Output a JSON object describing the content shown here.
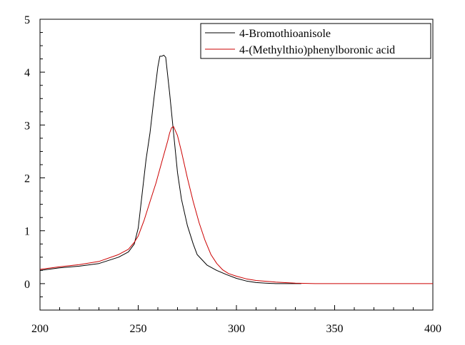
{
  "chart_data": {
    "type": "line",
    "title": "",
    "xlabel": "",
    "ylabel": "",
    "xlim": [
      200,
      400
    ],
    "ylim": [
      -0.5,
      5
    ],
    "x_ticks": [
      200,
      250,
      300,
      350,
      400
    ],
    "y_ticks": [
      0,
      1,
      2,
      3,
      4,
      5
    ],
    "grid": false,
    "legend_position": "top-right",
    "series": [
      {
        "name": "4-Bromothioanisole",
        "color": "#000000",
        "x": [
          200,
          210,
          220,
          230,
          240,
          245,
          248,
          250,
          252,
          254,
          256,
          258,
          260,
          261,
          262,
          263,
          264,
          266,
          268,
          270,
          272,
          275,
          278,
          280,
          285,
          290,
          295,
          300,
          305,
          310,
          315,
          320,
          325,
          330,
          333
        ],
        "y": [
          0.25,
          0.3,
          0.33,
          0.38,
          0.5,
          0.6,
          0.75,
          1.05,
          1.7,
          2.35,
          2.85,
          3.5,
          4.1,
          4.3,
          4.3,
          4.32,
          4.28,
          3.6,
          2.85,
          2.1,
          1.6,
          1.1,
          0.75,
          0.55,
          0.35,
          0.25,
          0.17,
          0.1,
          0.05,
          0.02,
          0.01,
          0.0,
          0.0,
          0.0,
          0.0
        ]
      },
      {
        "name": "4-(Methylthio)phenylboronic acid",
        "color": "#cc0000",
        "x": [
          200,
          210,
          220,
          230,
          240,
          245,
          248,
          250,
          253,
          256,
          259,
          262,
          265,
          266,
          267,
          268,
          270,
          272,
          275,
          278,
          281,
          284,
          287,
          290,
          293,
          296,
          300,
          305,
          310,
          320,
          330,
          340,
          350,
          360,
          380,
          400
        ],
        "y": [
          0.27,
          0.32,
          0.36,
          0.42,
          0.55,
          0.65,
          0.78,
          0.9,
          1.2,
          1.55,
          1.9,
          2.3,
          2.7,
          2.85,
          2.95,
          2.97,
          2.8,
          2.5,
          2.0,
          1.55,
          1.15,
          0.82,
          0.55,
          0.38,
          0.26,
          0.19,
          0.14,
          0.09,
          0.06,
          0.03,
          0.01,
          0.0,
          0.0,
          0.0,
          0.0,
          0.0
        ]
      }
    ]
  }
}
